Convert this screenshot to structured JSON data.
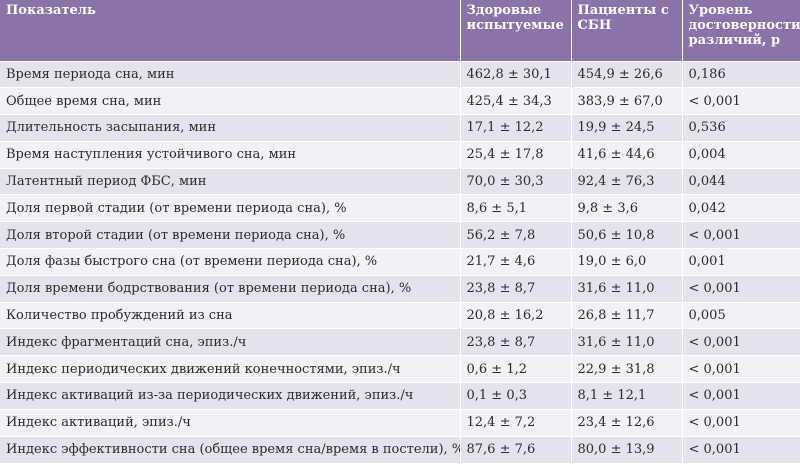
{
  "headers": [
    "Показатель",
    "Здоровые испытуемые",
    "Пациенты с СБН",
    "Уровень достоверности различий, р"
  ],
  "rows": [
    [
      "Время периода сна, мин",
      "462,8 ± 30,1",
      "454,9 ± 26,6",
      "0,186"
    ],
    [
      "Общее время сна, мин",
      "425,4 ± 34,3",
      "383,9 ± 67,0",
      "< 0,001"
    ],
    [
      "Длительность засыпания, мин",
      "17,1 ± 12,2",
      "19,9 ± 24,5",
      "0,536"
    ],
    [
      "Время наступления устойчивого сна, мин",
      "25,4 ± 17,8",
      "41,6 ± 44,6",
      "0,004"
    ],
    [
      "Латентный период ФБС, мин",
      "70,0 ± 30,3",
      "92,4 ± 76,3",
      "0,044"
    ],
    [
      "Доля первой стадии (от времени периода сна), %",
      "8,6 ± 5,1",
      "9,8 ± 3,6",
      "0,042"
    ],
    [
      "Доля второй стадии (от времени периода сна), %",
      "56,2 ± 7,8",
      "50,6 ± 10,8",
      "< 0,001"
    ],
    [
      "Доля фазы быстрого сна (от времени периода сна), %",
      "21,7 ± 4,6",
      "19,0 ± 6,0",
      "0,001"
    ],
    [
      "Доля времени бодрствования (от времени периода сна), %",
      "23,8 ± 8,7",
      "31,6 ± 11,0",
      "< 0,001"
    ],
    [
      "Количество пробуждений из сна",
      "20,8 ± 16,2",
      "26,8 ± 11,7",
      "0,005"
    ],
    [
      "Индекс фрагментаций сна, эпиз./ч",
      "23,8 ± 8,7",
      "31,6 ± 11,0",
      "< 0,001"
    ],
    [
      "Индекс периодических движений конечностями, эпиз./ч",
      "0,6 ± 1,2",
      "22,9 ± 31,8",
      "< 0,001"
    ],
    [
      "Индекс активаций из-за периодических движений, эпиз./ч",
      "0,1 ± 0,3",
      "8,1 ± 12,1",
      "< 0,001"
    ],
    [
      "Индекс активаций, эпиз./ч",
      "12,4 ± 7,2",
      "23,4 ± 12,6",
      "< 0,001"
    ],
    [
      "Индекс эффективности сна (общее время сна/время в постели), %",
      "87,6 ± 7,6",
      "80,0 ± 13,9",
      "< 0,001"
    ]
  ]
}
